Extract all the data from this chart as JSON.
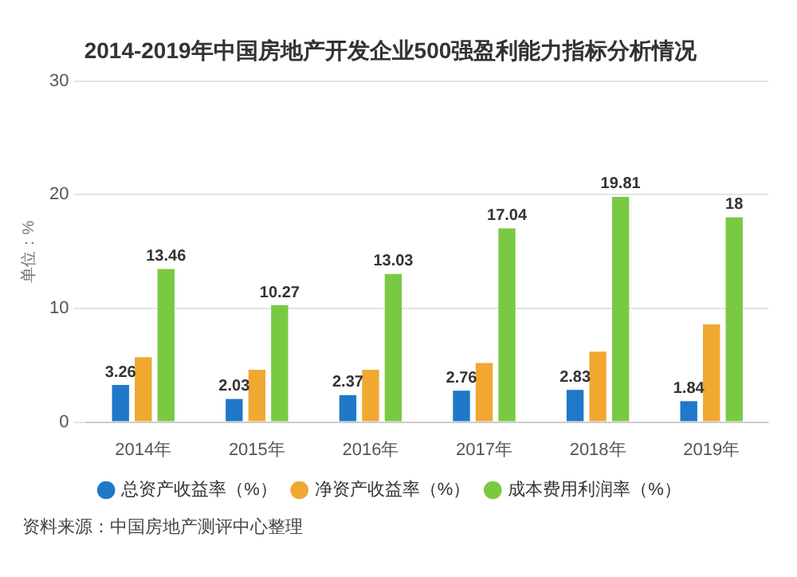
{
  "chart_data": {
    "type": "bar",
    "title": "2014-2019年中国房地产开发企业500强盈利能力指标分析情况",
    "ylabel": "单位：%",
    "categories": [
      "2014年",
      "2015年",
      "2016年",
      "2017年",
      "2018年",
      "2019年"
    ],
    "series": [
      {
        "name": "总资产收益率（%）",
        "color": "#1f78c8",
        "values": [
          3.26,
          2.03,
          2.37,
          2.76,
          2.83,
          1.84
        ],
        "value_labels": [
          "3.26",
          "2.03",
          "2.37",
          "2.76",
          "2.83",
          "1.84"
        ]
      },
      {
        "name": "净资产收益率（%）",
        "color": "#f0a830",
        "values": [
          5.7,
          4.6,
          4.6,
          5.2,
          6.2,
          8.6
        ]
      },
      {
        "name": "成本费用利润率（%）",
        "color": "#7ac943",
        "values": [
          13.46,
          10.27,
          13.03,
          17.04,
          19.81,
          18
        ],
        "value_labels": [
          "13.46",
          "10.27",
          "13.03",
          "17.04",
          "19.81",
          "18"
        ]
      }
    ],
    "ylim": [
      0,
      30
    ],
    "yticks": [
      0,
      10,
      20,
      30
    ],
    "grid": "y",
    "legend": "bottom",
    "annotations": [
      "资料来源：中国房地产测评中心整理"
    ]
  }
}
